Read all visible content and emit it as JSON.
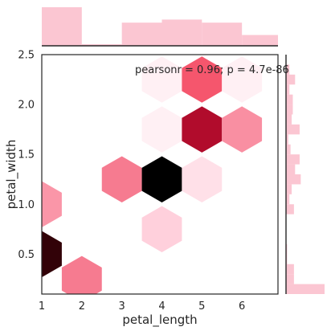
{
  "chart_data": {
    "type": "hexbin",
    "xlabel": "petal_length",
    "ylabel": "petal_width",
    "xlim": [
      1.0,
      6.9
    ],
    "ylim": [
      0.1,
      2.5
    ],
    "xticks": [
      1,
      2,
      3,
      4,
      5,
      6
    ],
    "yticks": [
      0.5,
      1.0,
      1.5,
      2.0,
      2.5
    ],
    "ytick_labels": [
      "0.5",
      "1.0",
      "1.5",
      "2.0",
      "2.5"
    ],
    "annotation": "pearsonr = 0.96; p = 4.7e-86",
    "colors": {
      "c0": "#fff0f4",
      "c1": "#ffe0e8",
      "c2": "#ffd0dc",
      "c3": "#fa96a8",
      "c4": "#f98fa2",
      "c5": "#f67b90",
      "c6": "#f5566d",
      "c7": "#b10c2c",
      "c8": "#320208",
      "c9": "#000000",
      "marginal": "#fbc6d2"
    },
    "hexes": [
      {
        "x": 1.0,
        "y": 0.5,
        "color": "c8"
      },
      {
        "x": 1.0,
        "y": 1.0,
        "color": "c3"
      },
      {
        "x": 2.0,
        "y": 0.25,
        "color": "c5"
      },
      {
        "x": 3.0,
        "y": 1.25,
        "color": "c5"
      },
      {
        "x": 4.0,
        "y": 0.75,
        "color": "c2"
      },
      {
        "x": 4.0,
        "y": 1.25,
        "color": "c9"
      },
      {
        "x": 4.0,
        "y": 1.75,
        "color": "c0"
      },
      {
        "x": 4.0,
        "y": 2.25,
        "color": "c0"
      },
      {
        "x": 5.0,
        "y": 1.25,
        "color": "c1"
      },
      {
        "x": 5.0,
        "y": 1.75,
        "color": "c7"
      },
      {
        "x": 5.0,
        "y": 2.25,
        "color": "c6"
      },
      {
        "x": 6.0,
        "y": 1.75,
        "color": "c4"
      },
      {
        "x": 6.0,
        "y": 2.25,
        "color": "c0"
      }
    ],
    "top_hist": {
      "bins": [
        1.0,
        2.0,
        3.0,
        4.0,
        5.0,
        6.0,
        6.9
      ],
      "counts": [
        50,
        2,
        30,
        34,
        30,
        14
      ]
    },
    "right_hist": {
      "bins": [
        0.1,
        0.2,
        0.3,
        0.4,
        0.5,
        0.6,
        0.7,
        0.8,
        0.9,
        1.0,
        1.1,
        1.2,
        1.3,
        1.4,
        1.5,
        1.6,
        1.7,
        1.8,
        1.9,
        2.0,
        2.1,
        2.2,
        2.3,
        2.4,
        2.5
      ],
      "counts": [
        34,
        7,
        7,
        1,
        1,
        0,
        0,
        0,
        7,
        3,
        5,
        13,
        8,
        12,
        4,
        2,
        12,
        5,
        6,
        6,
        3,
        8,
        3,
        0
      ]
    }
  }
}
